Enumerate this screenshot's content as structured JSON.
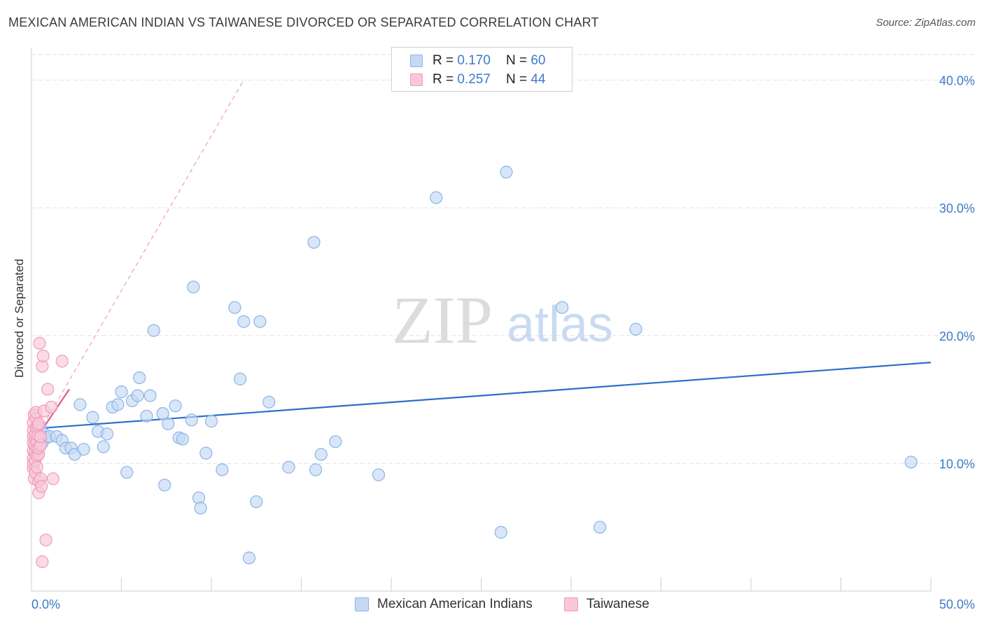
{
  "header": {
    "title": "MEXICAN AMERICAN INDIAN VS TAIWANESE DIVORCED OR SEPARATED CORRELATION CHART",
    "source": "Source: ZipAtlas.com"
  },
  "watermark": {
    "zip": "ZIP",
    "atlas": "atlas"
  },
  "legend": {
    "rows": [
      {
        "r_label": "R = ",
        "r_value": "0.170",
        "n_label": "N = ",
        "n_value": "60"
      },
      {
        "r_label": "R = ",
        "r_value": "0.257",
        "n_label": "N = ",
        "n_value": "44"
      }
    ]
  },
  "chart_data": {
    "type": "scatter",
    "title": "MEXICAN AMERICAN INDIAN VS TAIWANESE DIVORCED OR SEPARATED CORRELATION CHART",
    "xlabel": "",
    "ylabel": "Divorced or Separated",
    "xlim": [
      0,
      50
    ],
    "ylim": [
      0,
      42
    ],
    "x_tick_labels": [
      "0.0%",
      "50.0%"
    ],
    "y_ticks": [
      10,
      20,
      30,
      40
    ],
    "y_tick_labels": [
      "10.0%",
      "20.0%",
      "30.0%",
      "40.0%"
    ],
    "grid": true,
    "series": [
      {
        "name": "Mexican American Indians",
        "color": "#8ab4e8",
        "fill": "#c5d9f3",
        "line_color": "#2b6fcc",
        "R": 0.17,
        "N": 60,
        "trend": {
          "x": [
            0,
            50
          ],
          "y": [
            12.7,
            17.9
          ]
        },
        "points": [
          [
            0.3,
            12.5
          ],
          [
            0.5,
            12.8
          ],
          [
            0.6,
            11.6
          ],
          [
            0.7,
            12.3
          ],
          [
            0.8,
            12.0
          ],
          [
            1.0,
            12.1
          ],
          [
            1.4,
            12.1
          ],
          [
            1.7,
            11.8
          ],
          [
            1.9,
            11.2
          ],
          [
            2.2,
            11.2
          ],
          [
            2.4,
            10.7
          ],
          [
            2.7,
            14.6
          ],
          [
            2.9,
            11.1
          ],
          [
            3.4,
            13.6
          ],
          [
            3.7,
            12.5
          ],
          [
            4.0,
            11.3
          ],
          [
            4.2,
            12.3
          ],
          [
            4.5,
            14.4
          ],
          [
            4.8,
            14.6
          ],
          [
            5.0,
            15.6
          ],
          [
            5.3,
            9.3
          ],
          [
            5.6,
            14.9
          ],
          [
            5.9,
            15.3
          ],
          [
            6.0,
            16.7
          ],
          [
            6.4,
            13.7
          ],
          [
            6.6,
            15.3
          ],
          [
            6.8,
            20.4
          ],
          [
            7.3,
            13.9
          ],
          [
            7.4,
            8.3
          ],
          [
            7.6,
            13.1
          ],
          [
            8.0,
            14.5
          ],
          [
            8.2,
            12.0
          ],
          [
            8.4,
            11.9
          ],
          [
            8.9,
            13.4
          ],
          [
            9.0,
            23.8
          ],
          [
            9.3,
            7.3
          ],
          [
            9.4,
            6.5
          ],
          [
            9.7,
            10.8
          ],
          [
            10.0,
            13.3
          ],
          [
            10.6,
            9.5
          ],
          [
            11.3,
            22.2
          ],
          [
            11.6,
            16.6
          ],
          [
            11.8,
            21.1
          ],
          [
            12.1,
            2.6
          ],
          [
            12.5,
            7.0
          ],
          [
            12.7,
            21.1
          ],
          [
            13.2,
            14.8
          ],
          [
            14.3,
            9.7
          ],
          [
            15.7,
            27.3
          ],
          [
            15.8,
            9.5
          ],
          [
            16.1,
            10.7
          ],
          [
            16.9,
            11.7
          ],
          [
            19.3,
            9.1
          ],
          [
            22.5,
            30.8
          ],
          [
            26.1,
            4.6
          ],
          [
            26.4,
            32.8
          ],
          [
            29.5,
            22.2
          ],
          [
            31.6,
            5.0
          ],
          [
            33.6,
            20.5
          ],
          [
            48.9,
            10.1
          ]
        ]
      },
      {
        "name": "Taiwanese",
        "color": "#f19ab8",
        "fill": "#f8c8d8",
        "line_color": "#e0578a",
        "R": 0.257,
        "N": 44,
        "trend": {
          "x": [
            0,
            2.1
          ],
          "y": [
            11.4,
            15.8
          ]
        },
        "trend_dashed": {
          "x": [
            0,
            11.8
          ],
          "y": [
            11.4,
            40.0
          ]
        },
        "points": [
          [
            0.1,
            9.6
          ],
          [
            0.1,
            10.0
          ],
          [
            0.1,
            10.4
          ],
          [
            0.1,
            11.0
          ],
          [
            0.1,
            11.6
          ],
          [
            0.1,
            12.1
          ],
          [
            0.1,
            12.6
          ],
          [
            0.1,
            13.2
          ],
          [
            0.15,
            13.8
          ],
          [
            0.15,
            8.8
          ],
          [
            0.2,
            9.3
          ],
          [
            0.2,
            10.2
          ],
          [
            0.2,
            10.9
          ],
          [
            0.2,
            11.4
          ],
          [
            0.2,
            11.9
          ],
          [
            0.2,
            12.3
          ],
          [
            0.25,
            12.8
          ],
          [
            0.25,
            13.5
          ],
          [
            0.25,
            14.0
          ],
          [
            0.3,
            9.7
          ],
          [
            0.3,
            10.6
          ],
          [
            0.3,
            11.2
          ],
          [
            0.3,
            11.7
          ],
          [
            0.35,
            12.2
          ],
          [
            0.35,
            12.9
          ],
          [
            0.4,
            8.6
          ],
          [
            0.4,
            10.7
          ],
          [
            0.4,
            11.2
          ],
          [
            0.4,
            13.1
          ],
          [
            0.4,
            7.7
          ],
          [
            0.45,
            19.4
          ],
          [
            0.5,
            8.8
          ],
          [
            0.5,
            11.4
          ],
          [
            0.5,
            12.1
          ],
          [
            0.55,
            8.2
          ],
          [
            0.6,
            17.6
          ],
          [
            0.6,
            2.3
          ],
          [
            0.65,
            18.4
          ],
          [
            0.7,
            14.1
          ],
          [
            0.8,
            4.0
          ],
          [
            0.9,
            15.8
          ],
          [
            1.1,
            14.4
          ],
          [
            1.2,
            8.8
          ],
          [
            1.7,
            18.0
          ]
        ]
      }
    ]
  }
}
